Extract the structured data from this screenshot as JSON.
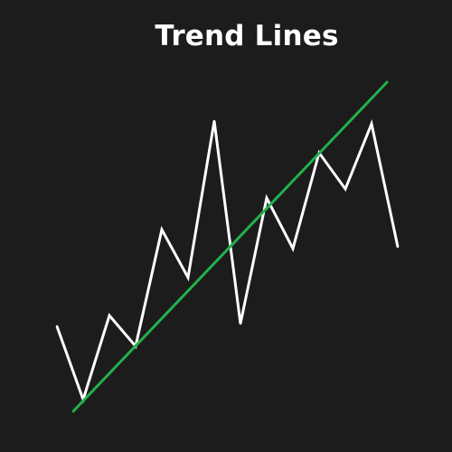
{
  "chart_data": {
    "type": "line",
    "title": "Trend Lines",
    "xlabel": "",
    "ylabel": "",
    "grid": false,
    "legend": "none",
    "series": [
      {
        "color": "#ffffff",
        "points": [
          [
            0,
            116
          ],
          [
            1,
            35
          ],
          [
            2,
            128
          ],
          [
            3,
            94
          ],
          [
            4,
            223
          ],
          [
            5,
            170
          ],
          [
            6,
            343
          ],
          [
            7,
            119
          ],
          [
            8,
            258
          ],
          [
            9,
            202
          ],
          [
            10,
            308
          ],
          [
            11,
            268
          ],
          [
            12,
            340
          ],
          [
            13,
            204
          ]
        ]
      }
    ],
    "trendline": {
      "color": "#22b14c",
      "from": [
        0,
        22
      ],
      "to": [
        13,
        386
      ]
    },
    "xlim": [
      0,
      13
    ],
    "ylim": [
      0,
      400
    ]
  }
}
